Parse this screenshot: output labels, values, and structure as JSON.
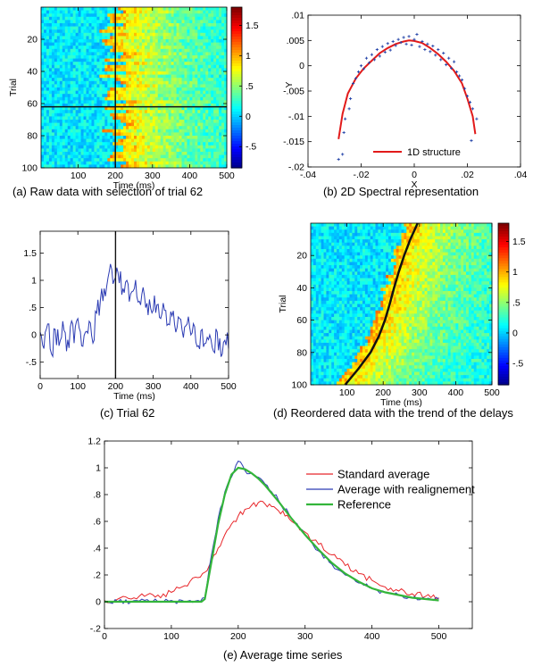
{
  "figure": {
    "captions": {
      "a": "(a) Raw data with selection of trial 62",
      "b": "(b) 2D Spectral representation",
      "c": "(c) Trial 62",
      "d": "(d) Reordered data with the trend of the delays",
      "e": "(e) Average time series"
    }
  },
  "chart_data": [
    {
      "id": "a",
      "type": "heatmap",
      "xlabel": "Time (ms)",
      "ylabel": "Trial",
      "xlim": [
        0,
        500
      ],
      "ylim": [
        0,
        100
      ],
      "y_reversed": true,
      "x_ticks": [
        100,
        200,
        300,
        400,
        500
      ],
      "y_ticks": [
        20,
        40,
        60,
        80,
        100
      ],
      "colorbar": {
        "ticks": [
          -0.5,
          0,
          0.5,
          1,
          1.5
        ],
        "range": [
          -0.85,
          1.8
        ],
        "colormap": "jet"
      },
      "selection": {
        "time_ms": 200,
        "trial": 62
      },
      "peak_onset_ms": {
        "min": 160,
        "max": 230
      }
    },
    {
      "id": "b",
      "type": "scatter",
      "xlabel": "X",
      "ylabel": "Y",
      "xlim": [
        -0.04,
        0.04
      ],
      "ylim": [
        -0.02,
        0.01
      ],
      "x_ticks": [
        -0.04,
        -0.02,
        0,
        0.02,
        0.04
      ],
      "y_ticks": [
        -0.02,
        -0.015,
        -0.01,
        -0.005,
        0,
        0.005,
        0.01
      ],
      "legend": {
        "location": "bottom-right",
        "entries": [
          "1D structure"
        ]
      },
      "curve": {
        "name": "1D structure",
        "color": "#e21a1a",
        "x": [
          -0.0285,
          -0.027,
          -0.025,
          -0.022,
          -0.019,
          -0.016,
          -0.013,
          -0.01,
          -0.007,
          -0.004,
          -0.002,
          0.0,
          0.003,
          0.006,
          0.009,
          0.012,
          0.015,
          0.018,
          0.02,
          0.022,
          0.023
        ],
        "y": [
          -0.0145,
          -0.0095,
          -0.0055,
          -0.0025,
          -0.0005,
          0.001,
          0.0025,
          0.0035,
          0.0043,
          0.0048,
          0.005,
          0.0049,
          0.0045,
          0.0035,
          0.0023,
          0.0008,
          -0.001,
          -0.0035,
          -0.0065,
          -0.01,
          -0.0135
        ]
      },
      "points": {
        "color": "#2343a8",
        "x": [
          -0.0285,
          -0.027,
          -0.026,
          -0.024,
          -0.023,
          -0.022,
          -0.021,
          -0.02,
          -0.019,
          -0.018,
          -0.017,
          -0.016,
          -0.015,
          -0.014,
          -0.013,
          -0.012,
          -0.011,
          -0.01,
          -0.009,
          -0.008,
          -0.007,
          -0.006,
          -0.005,
          -0.004,
          -0.003,
          -0.002,
          -0.001,
          0.0,
          0.001,
          0.002,
          0.003,
          0.004,
          0.005,
          0.006,
          0.007,
          0.008,
          0.009,
          0.01,
          0.011,
          0.012,
          0.013,
          0.014,
          0.015,
          0.016,
          0.017,
          0.018,
          0.019,
          0.02,
          0.021,
          0.022,
          0.0235,
          0.0215,
          -0.0245,
          -0.0265
        ],
        "y": [
          -0.0185,
          -0.0175,
          -0.0105,
          -0.0065,
          -0.0035,
          -0.0025,
          -0.0012,
          0.0,
          -0.0006,
          0.0015,
          0.0006,
          0.0022,
          0.0012,
          0.0032,
          0.0019,
          0.0038,
          0.0027,
          0.0044,
          0.0031,
          0.0048,
          0.004,
          0.0052,
          0.0046,
          0.0056,
          0.0043,
          0.0058,
          0.0041,
          0.0052,
          0.0062,
          0.0038,
          0.0048,
          0.0032,
          0.0043,
          0.0028,
          0.0039,
          0.0021,
          0.0032,
          0.0012,
          0.0025,
          0.0002,
          0.0015,
          -0.0005,
          0.0008,
          -0.0012,
          -0.002,
          -0.0028,
          -0.0045,
          -0.006,
          -0.0072,
          -0.0085,
          -0.0105,
          -0.0148,
          -0.0085,
          -0.0132
        ]
      }
    },
    {
      "id": "c",
      "type": "line",
      "xlabel": "Time (ms)",
      "ylabel": "",
      "xlim": [
        0,
        500
      ],
      "ylim": [
        -0.8,
        1.9
      ],
      "x_ticks": [
        0,
        100,
        200,
        300,
        400,
        500
      ],
      "y_ticks": [
        -0.5,
        0,
        0.5,
        1,
        1.5
      ],
      "marker_line_x": 200,
      "series": [
        {
          "color": "#2b3bb3",
          "x": [
            0,
            10,
            20,
            30,
            40,
            50,
            60,
            70,
            80,
            90,
            100,
            110,
            120,
            130,
            140,
            150,
            160,
            170,
            180,
            190,
            200,
            210,
            220,
            230,
            240,
            250,
            260,
            270,
            280,
            290,
            300,
            310,
            320,
            330,
            340,
            350,
            360,
            370,
            380,
            390,
            400,
            410,
            420,
            430,
            440,
            450,
            460,
            470,
            480,
            490,
            500
          ],
          "y": [
            0.05,
            -0.25,
            0.2,
            -0.35,
            0.1,
            -0.2,
            0.25,
            -0.3,
            0.15,
            -0.15,
            0.3,
            -0.2,
            0.05,
            0.25,
            -0.15,
            0.4,
            0.65,
            0.85,
            1.05,
            1.2,
            1.05,
            0.95,
            0.85,
            1.0,
            0.75,
            0.85,
            0.6,
            0.75,
            0.5,
            0.65,
            0.45,
            0.55,
            0.3,
            0.45,
            0.2,
            0.35,
            0.05,
            0.3,
            -0.05,
            0.2,
            0.0,
            0.15,
            -0.2,
            0.1,
            -0.15,
            0.0,
            -0.3,
            0.05,
            -0.4,
            -0.1,
            -0.25
          ]
        }
      ]
    },
    {
      "id": "d",
      "type": "heatmap",
      "xlabel": "Time (ms)",
      "ylabel": "Trial",
      "xlim": [
        0,
        500
      ],
      "ylim": [
        0,
        100
      ],
      "y_reversed": true,
      "x_ticks": [
        100,
        200,
        300,
        400,
        500
      ],
      "y_ticks": [
        20,
        40,
        60,
        80,
        100
      ],
      "colorbar": {
        "ticks": [
          -0.5,
          0,
          0.5,
          1,
          1.5
        ],
        "range": [
          -0.85,
          1.8
        ],
        "colormap": "jet"
      },
      "trend": {
        "color": "#111111",
        "trial": [
          0,
          10,
          20,
          30,
          40,
          50,
          60,
          70,
          80,
          90,
          100
        ],
        "time_ms": [
          295,
          275,
          258,
          243,
          230,
          218,
          205,
          188,
          165,
          132,
          95
        ]
      }
    },
    {
      "id": "e",
      "type": "line",
      "xlabel": "",
      "ylabel": "",
      "xlim": [
        0,
        550
      ],
      "ylim": [
        -0.2,
        1.2
      ],
      "x_ticks": [
        0,
        100,
        200,
        300,
        400,
        500
      ],
      "y_ticks": [
        -0.2,
        0,
        0.2,
        0.4,
        0.6,
        0.8,
        1,
        1.2
      ],
      "legend": {
        "location": "top-right",
        "entries": [
          "Standard average",
          "Average with realignement",
          "Reference"
        ]
      },
      "series": [
        {
          "name": "Standard average",
          "color": "#e8262a",
          "x": [
            0,
            20,
            40,
            60,
            80,
            100,
            120,
            140,
            150,
            160,
            170,
            180,
            190,
            200,
            210,
            220,
            230,
            240,
            250,
            260,
            270,
            280,
            300,
            320,
            340,
            360,
            380,
            400,
            420,
            440,
            460,
            480,
            500
          ],
          "y": [
            0.01,
            0.02,
            0.02,
            0.04,
            0.05,
            0.07,
            0.12,
            0.18,
            0.22,
            0.3,
            0.4,
            0.5,
            0.58,
            0.64,
            0.69,
            0.72,
            0.74,
            0.73,
            0.71,
            0.68,
            0.64,
            0.6,
            0.52,
            0.43,
            0.35,
            0.27,
            0.21,
            0.16,
            0.11,
            0.08,
            0.06,
            0.04,
            0.03
          ]
        },
        {
          "name": "Average with realignement",
          "color": "#2b3bb3",
          "x": [
            0,
            20,
            40,
            60,
            80,
            100,
            120,
            140,
            150,
            160,
            170,
            180,
            190,
            200,
            210,
            220,
            230,
            240,
            250,
            260,
            280,
            300,
            320,
            340,
            360,
            380,
            400,
            420,
            440,
            460,
            480,
            500
          ],
          "y": [
            0.0,
            0.0,
            0.0,
            0.01,
            0.0,
            0.01,
            0.0,
            0.01,
            0.03,
            0.35,
            0.62,
            0.82,
            0.93,
            1.05,
            0.98,
            0.96,
            0.93,
            0.88,
            0.82,
            0.76,
            0.62,
            0.5,
            0.38,
            0.28,
            0.2,
            0.14,
            0.1,
            0.07,
            0.05,
            0.03,
            0.02,
            0.02
          ]
        },
        {
          "name": "Reference",
          "color": "#33b53a",
          "x": [
            0,
            145,
            150,
            160,
            170,
            180,
            190,
            200,
            210,
            220,
            230,
            240,
            250,
            260,
            280,
            300,
            320,
            340,
            360,
            380,
            400,
            420,
            440,
            460,
            480,
            500
          ],
          "y": [
            0.0,
            0.0,
            0.02,
            0.3,
            0.58,
            0.8,
            0.95,
            1.0,
            0.99,
            0.96,
            0.92,
            0.87,
            0.81,
            0.75,
            0.62,
            0.5,
            0.39,
            0.29,
            0.21,
            0.15,
            0.1,
            0.07,
            0.05,
            0.03,
            0.02,
            0.01
          ]
        }
      ]
    }
  ]
}
